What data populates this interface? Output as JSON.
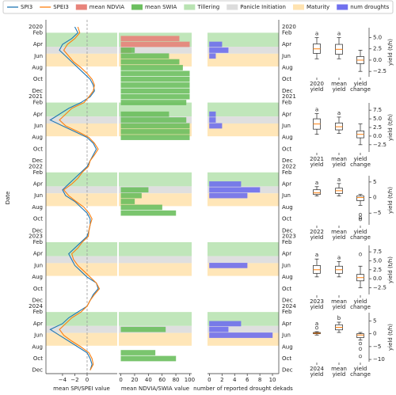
{
  "chart_data": [
    {
      "type": "line",
      "y_label": "Date",
      "x_label": "mean SPI/SPEI value",
      "categories": [
        "2020",
        "Feb",
        null,
        "Apr",
        null,
        "Jun",
        null,
        "Aug",
        null,
        "Oct",
        null,
        "Dec",
        "2021",
        "Feb",
        null,
        "Apr",
        null,
        "Jun",
        null,
        "Aug",
        null,
        "Oct",
        null,
        "Dec",
        "2022",
        "Feb",
        null,
        "Apr",
        null,
        "Jun",
        null,
        "Aug",
        null,
        "Oct",
        null,
        "Dec",
        "2023",
        "Feb",
        null,
        "Apr",
        null,
        "Jun",
        null,
        "Aug",
        null,
        "Oct",
        null,
        "Dec",
        "2024",
        "Feb",
        null,
        "Apr",
        null,
        "Jun",
        null,
        "Aug",
        null,
        "Oct",
        null,
        "Dec"
      ],
      "series": [
        {
          "name": "SPI3",
          "color": "#1f77b4",
          "values": [
            -2.0,
            -1.5,
            -2.5,
            -4.0,
            -4.5,
            -3.5,
            -2.5,
            -1.5,
            -0.5,
            0.5,
            1.0,
            1.2,
            0.5,
            -1.0,
            -3.0,
            -4.5,
            -6.0,
            -4.0,
            -2.0,
            0.0,
            1.0,
            1.5,
            1.0,
            0.5,
            0.0,
            -1.0,
            -2.0,
            -3.0,
            -4.0,
            -3.5,
            -2.0,
            -1.0,
            0.0,
            0.5,
            0.5,
            0.3,
            0.0,
            -1.0,
            -2.0,
            -3.0,
            -2.5,
            -2.0,
            -1.0,
            0.0,
            1.5,
            1.8,
            1.0,
            0.5,
            0.0,
            -1.5,
            -3.0,
            -4.0,
            -6.0,
            -4.5,
            -3.0,
            -1.5,
            0.0,
            0.5,
            0.8,
            0.5
          ]
        },
        {
          "name": "SPEI3",
          "color": "#ff7f0e",
          "values": [
            -1.5,
            -1.2,
            -2.0,
            -3.2,
            -3.8,
            -3.0,
            -2.2,
            -1.0,
            0.0,
            0.8,
            1.2,
            1.0,
            0.3,
            -0.5,
            -2.5,
            -3.5,
            -4.5,
            -3.5,
            -1.5,
            0.3,
            1.2,
            1.8,
            1.2,
            0.5,
            0.2,
            -0.8,
            -1.5,
            -2.5,
            -3.8,
            -3.0,
            -1.8,
            -0.5,
            0.3,
            0.8,
            0.5,
            0.3,
            0.2,
            -0.8,
            -1.5,
            -2.5,
            -2.2,
            -1.5,
            -0.5,
            0.5,
            1.5,
            2.0,
            1.2,
            0.5,
            0.0,
            -1.0,
            -2.5,
            -3.5,
            -4.5,
            -3.8,
            -2.5,
            -1.0,
            0.3,
            0.8,
            1.0,
            0.5
          ]
        }
      ],
      "stages": [
        {
          "name": "Tillering",
          "color": "#b9e3b2",
          "start": 1.0,
          "end": 3.4
        },
        {
          "name": "Panicle Initiation",
          "color": "#dcdcdc",
          "start": 3.4,
          "end": 4.6
        },
        {
          "name": "Maturity",
          "color": "#ffe3b0",
          "start": 4.6,
          "end": 6.8
        }
      ],
      "xlim": [
        -6.7,
        4.9
      ],
      "xticks": [
        {
          "value": -4,
          "label": "−4"
        },
        {
          "value": -2,
          "label": "−2"
        },
        0
      ]
    },
    {
      "type": "bar",
      "x_label": "mean NDVIA/SWIA value",
      "series": [
        {
          "name": "mean NDVIA",
          "color": "#e8837a",
          "values": [
            null,
            null,
            85,
            100,
            15,
            null,
            null,
            null,
            null,
            null,
            null,
            null,
            null,
            null,
            null,
            null,
            null,
            null,
            null,
            null,
            null,
            null,
            null,
            null,
            null,
            null,
            null,
            null,
            null,
            null,
            null,
            null,
            null,
            null,
            null,
            null,
            null,
            null,
            null,
            null,
            null,
            null,
            null,
            null,
            null,
            null,
            null,
            null,
            null,
            null,
            null,
            null,
            null,
            null,
            null,
            null,
            null,
            null,
            null,
            null
          ]
        },
        {
          "name": "mean SWIA",
          "color": "#6cbf5f",
          "values": [
            null,
            null,
            null,
            null,
            20,
            70,
            85,
            90,
            100,
            100,
            100,
            100,
            100,
            95,
            null,
            70,
            95,
            100,
            100,
            100,
            null,
            null,
            null,
            null,
            null,
            null,
            null,
            null,
            40,
            30,
            20,
            60,
            80,
            null,
            null,
            null,
            null,
            null,
            null,
            null,
            null,
            null,
            null,
            null,
            null,
            null,
            null,
            null,
            null,
            null,
            null,
            null,
            65,
            null,
            null,
            null,
            50,
            80,
            null,
            null
          ]
        }
      ],
      "xlim": [
        -3,
        103
      ],
      "xticks": [
        0,
        20,
        40,
        60,
        80,
        100
      ]
    },
    {
      "type": "bar",
      "x_label": "number of reported drought dekads",
      "series": [
        {
          "name": "num droughts",
          "color": "#7070ee",
          "values": [
            null,
            null,
            null,
            2,
            3,
            1,
            null,
            null,
            null,
            null,
            null,
            null,
            null,
            null,
            null,
            1,
            1,
            2,
            null,
            null,
            null,
            null,
            null,
            null,
            null,
            null,
            null,
            5,
            8,
            6,
            null,
            null,
            null,
            null,
            null,
            null,
            null,
            null,
            null,
            null,
            null,
            6,
            null,
            null,
            null,
            null,
            null,
            null,
            null,
            null,
            null,
            5,
            3,
            10,
            null,
            null,
            null,
            null,
            null,
            null
          ]
        }
      ],
      "xlim": [
        -0.3,
        11
      ],
      "xticks": [
        0,
        2,
        4,
        6,
        8,
        10
      ]
    },
    {
      "type": "box",
      "y_label": "yield (t/h)",
      "categories": [
        [
          "2020",
          "yield"
        ],
        [
          "mean",
          "yield"
        ],
        [
          "yield",
          "change"
        ]
      ],
      "boxes": [
        {
          "low": 0.3,
          "q1": 1.5,
          "median": 2.5,
          "q3": 3.6,
          "high": 5.0,
          "outliers": [],
          "letter": "a"
        },
        {
          "low": 0.3,
          "q1": 1.3,
          "median": 2.4,
          "q3": 3.5,
          "high": 5.0,
          "outliers": [],
          "letter": "a"
        },
        {
          "low": -2.5,
          "q1": -0.8,
          "median": 0.0,
          "q3": 0.8,
          "high": 2.2,
          "outliers": []
        }
      ],
      "ylim": [
        -3.7,
        7.2
      ],
      "yticks": [
        {
          "value": -2.5,
          "label": "−2.5"
        },
        {
          "value": 0,
          "label": "0.0"
        },
        {
          "value": 2.5,
          "label": "2.5"
        },
        {
          "value": 5,
          "label": "5.0"
        }
      ]
    },
    {
      "type": "box",
      "y_label": "yield (t/h)",
      "categories": [
        [
          "2021",
          "yield"
        ],
        [
          "mean",
          "yield"
        ],
        [
          "yield",
          "change"
        ]
      ],
      "boxes": [
        {
          "low": 0.5,
          "q1": 2.0,
          "median": 3.5,
          "q3": 5.0,
          "high": 6.5,
          "outliers": [],
          "letter": "a"
        },
        {
          "low": 0.8,
          "q1": 1.8,
          "median": 2.7,
          "q3": 3.8,
          "high": 5.5,
          "outliers": [],
          "letter": "a"
        },
        {
          "low": -2.5,
          "q1": -0.5,
          "median": 0.5,
          "q3": 1.5,
          "high": 3.5,
          "outliers": []
        }
      ],
      "ylim": [
        -4.6,
        9.6
      ],
      "yticks": [
        {
          "value": -2.5,
          "label": "−2.5"
        },
        {
          "value": 0,
          "label": "0.0"
        },
        {
          "value": 2.5,
          "label": "2.5"
        },
        {
          "value": 5,
          "label": "5.0"
        },
        7.5
      ]
    },
    {
      "type": "box",
      "y_label": "yield (t/h)",
      "categories": [
        [
          "2022",
          "yield"
        ],
        [
          "mean",
          "yield"
        ],
        [
          "yield",
          "change"
        ]
      ],
      "boxes": [
        {
          "low": 0.5,
          "q1": 1.0,
          "median": 1.5,
          "q3": 2.5,
          "high": 3.5,
          "outliers": [],
          "letter": "a"
        },
        {
          "low": 0.5,
          "q1": 1.3,
          "median": 2.2,
          "q3": 3.0,
          "high": 4.5,
          "outliers": [],
          "letter": "a"
        },
        {
          "low": -2.5,
          "q1": -1.0,
          "median": 0.0,
          "q3": 0.5,
          "high": 1.0,
          "outliers": [
            -5.5,
            -6.5,
            -7.0
          ]
        }
      ],
      "ylim": [
        -8.75,
        7
      ],
      "yticks": [
        {
          "value": -5,
          "label": "−5"
        },
        0,
        5
      ]
    },
    {
      "type": "box",
      "y_label": "yield (t/h)",
      "categories": [
        [
          "2023",
          "yield"
        ],
        [
          "mean",
          "yield"
        ],
        [
          "yield",
          "change"
        ]
      ],
      "boxes": [
        {
          "low": 0.5,
          "q1": 1.5,
          "median": 2.5,
          "q3": 3.7,
          "high": 5.5,
          "outliers": [],
          "letter": "a"
        },
        {
          "low": 0.5,
          "q1": 1.5,
          "median": 2.5,
          "q3": 3.5,
          "high": 4.8,
          "outliers": [],
          "letter": "a"
        },
        {
          "low": -2.5,
          "q1": -0.6,
          "median": 0.3,
          "q3": 1.2,
          "high": 3.5,
          "outliers": [
            6.8
          ]
        }
      ],
      "ylim": [
        -4.4,
        9.3
      ],
      "yticks": [
        {
          "value": -2.5,
          "label": "−2.5"
        },
        {
          "value": 0,
          "label": "0.0"
        },
        {
          "value": 2.5,
          "label": "2.5"
        },
        {
          "value": 5,
          "label": "5.0"
        },
        7.5
      ]
    },
    {
      "type": "box",
      "y_label": "yield (t/h)",
      "categories": [
        [
          "2024",
          "yield"
        ],
        [
          "mean",
          "yield"
        ],
        [
          "yield",
          "change"
        ]
      ],
      "boxes": [
        {
          "low": -0.5,
          "q1": 0.0,
          "median": 0.2,
          "q3": 0.5,
          "high": 0.8,
          "outliers": [
            2.3
          ],
          "letter": "a"
        },
        {
          "low": 0.5,
          "q1": 1.5,
          "median": 2.5,
          "q3": 3.5,
          "high": 4.5,
          "outliers": [],
          "letter": "b"
        },
        {
          "low": -2.5,
          "q1": -1.5,
          "median": -0.5,
          "q3": 0.0,
          "high": 0.5,
          "outliers": [
            -3.8,
            -5.9,
            -8.8
          ]
        }
      ],
      "ylim": [
        -10.9,
        8.2
      ],
      "yticks": [
        {
          "value": -10,
          "label": "−10"
        },
        {
          "value": -5,
          "label": "−5"
        },
        0,
        5
      ]
    }
  ]
}
